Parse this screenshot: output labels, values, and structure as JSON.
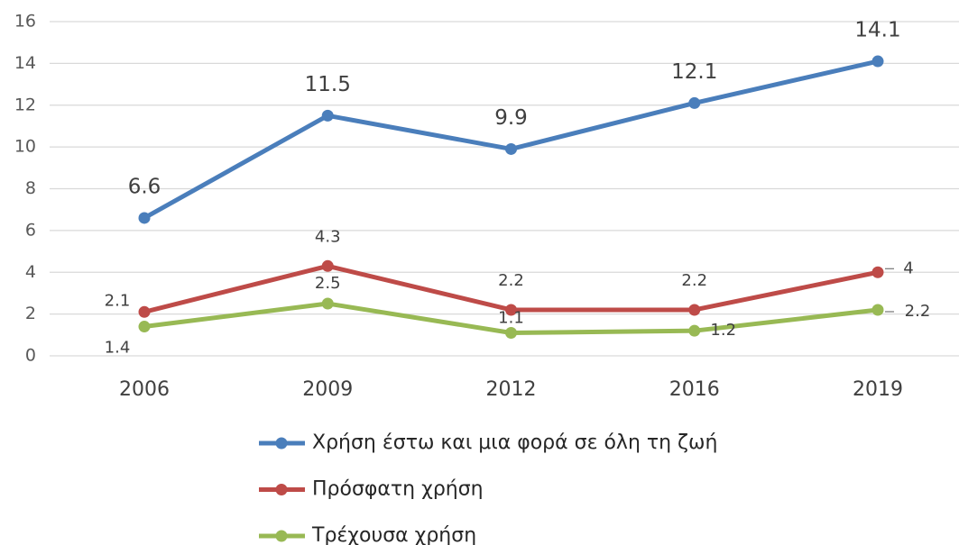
{
  "chart_data": {
    "type": "line",
    "categories": [
      "2006",
      "2009",
      "2012",
      "2016",
      "2019"
    ],
    "series": [
      {
        "name": "Χρήση έστω και μια φορά σε όλη τη ζωή",
        "color": "#4a7ebb",
        "values": [
          6.6,
          11.5,
          9.9,
          12.1,
          14.1
        ]
      },
      {
        "name": "Πρόσφατη χρήση",
        "color": "#be4b48",
        "values": [
          2.1,
          4.3,
          2.2,
          2.2,
          4
        ]
      },
      {
        "name": "Τρέχουσα χρήση",
        "color": "#98b954",
        "values": [
          1.4,
          2.5,
          1.1,
          1.2,
          2.2
        ]
      }
    ],
    "ylim": [
      0,
      16
    ],
    "yticks": [
      0,
      2,
      4,
      6,
      8,
      10,
      12,
      14,
      16
    ],
    "grid": true,
    "legend": "bottom"
  }
}
